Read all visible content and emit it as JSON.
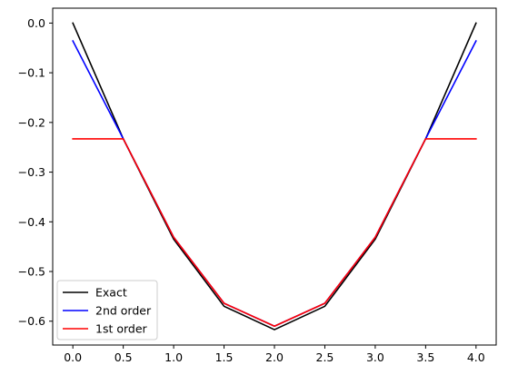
{
  "chart_data": {
    "type": "line",
    "title": "",
    "xlabel": "",
    "ylabel": "",
    "xlim": [
      -0.2,
      4.2
    ],
    "ylim": [
      -0.648,
      0.03
    ],
    "xticks": [
      0.0,
      0.5,
      1.0,
      1.5,
      2.0,
      2.5,
      3.0,
      3.5,
      4.0
    ],
    "xtick_labels": [
      "0.0",
      "0.5",
      "1.0",
      "1.5",
      "2.0",
      "2.5",
      "3.0",
      "3.5",
      "4.0"
    ],
    "yticks": [
      0.0,
      -0.1,
      -0.2,
      -0.3,
      -0.4,
      -0.5,
      -0.6
    ],
    "ytick_labels": [
      "0.0",
      "−0.1",
      "−0.2",
      "−0.3",
      "−0.4",
      "−0.5",
      "−0.6"
    ],
    "grid": false,
    "legend_position": "lower-left",
    "x": [
      0.0,
      0.5,
      1.0,
      1.5,
      2.0,
      2.5,
      3.0,
      3.5,
      4.0
    ],
    "series": [
      {
        "name": "Exact",
        "color": "#000000",
        "values": [
          0.0,
          -0.233,
          -0.435,
          -0.57,
          -0.617,
          -0.57,
          -0.435,
          -0.233,
          0.0
        ]
      },
      {
        "name": "2nd order",
        "color": "#0000ff",
        "values": [
          -0.036,
          -0.233,
          -0.431,
          -0.564,
          -0.61,
          -0.564,
          -0.431,
          -0.233,
          -0.036
        ]
      },
      {
        "name": "1st order",
        "color": "#ff0000",
        "values": [
          -0.233,
          -0.233,
          -0.431,
          -0.564,
          -0.61,
          -0.564,
          -0.431,
          -0.233,
          -0.233
        ]
      }
    ]
  }
}
